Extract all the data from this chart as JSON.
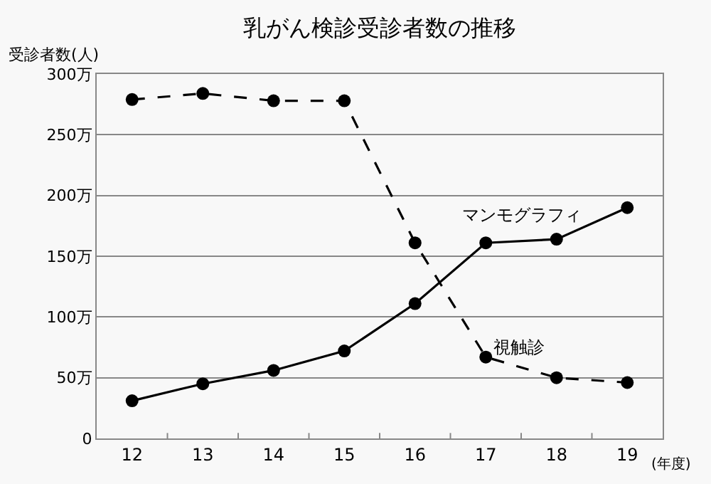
{
  "chart_data": {
    "type": "line",
    "title": "乳がん検診受診者数の推移",
    "ylabel": "受診者数(人)",
    "xlabel": "(年度)",
    "categories": [
      "12",
      "13",
      "14",
      "15",
      "16",
      "17",
      "18",
      "19"
    ],
    "series": [
      {
        "name": "視触診",
        "color": "#000000",
        "line_style": "dashed",
        "values": [
          279,
          284,
          278,
          278,
          161,
          67,
          50,
          46
        ]
      },
      {
        "name": "マンモグラフィ",
        "color": "#000000",
        "line_style": "solid",
        "values": [
          31,
          45,
          56,
          72,
          111,
          161,
          164,
          190
        ]
      }
    ],
    "ylim": [
      0,
      300
    ],
    "yticks": [
      {
        "value": 0,
        "label": "0"
      },
      {
        "value": 50,
        "label": "50万"
      },
      {
        "value": 100,
        "label": "100万"
      },
      {
        "value": 150,
        "label": "150万"
      },
      {
        "value": 200,
        "label": "200万"
      },
      {
        "value": 250,
        "label": "250万"
      },
      {
        "value": 300,
        "label": "300万"
      }
    ],
    "grid": "y",
    "marker": "circle",
    "legend": false
  }
}
